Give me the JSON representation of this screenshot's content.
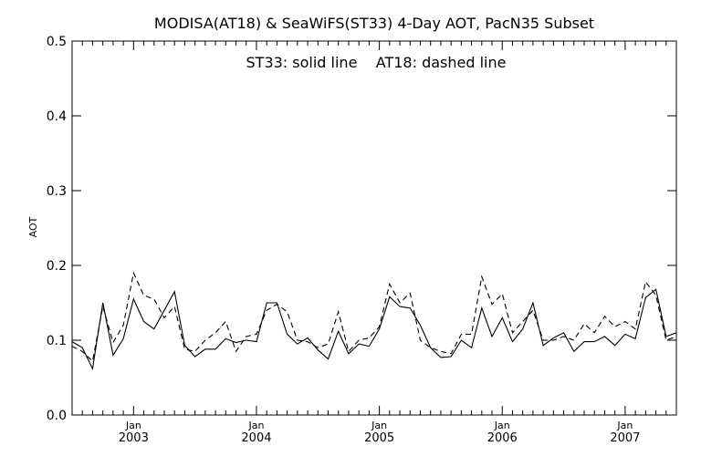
{
  "chart_data": {
    "type": "line",
    "title": "MODISA(AT18) & SeaWiFS(ST33) 4-Day AOT, PacN35 Subset",
    "annotation": "ST33: solid line    AT18: dashed line",
    "ylabel": "AOT",
    "xlabel": "",
    "ylim": [
      0.0,
      0.5
    ],
    "y_ticks": [
      "0.0",
      "0.1",
      "0.2",
      "0.3",
      "0.4",
      "0.5"
    ],
    "x_ticks": [
      {
        "month": "Jan",
        "year": "2003"
      },
      {
        "month": "Jan",
        "year": "2004"
      },
      {
        "month": "Jan",
        "year": "2005"
      },
      {
        "month": "Jan",
        "year": "2006"
      },
      {
        "month": "Jan",
        "year": "2007"
      }
    ],
    "xlim": [
      "2002-07",
      "2007-06"
    ],
    "grid": false,
    "legend": "none",
    "x": [
      "2002-07",
      "2002-08",
      "2002-09",
      "2002-10",
      "2002-11",
      "2002-12",
      "2003-01",
      "2003-02",
      "2003-03",
      "2003-04",
      "2003-05",
      "2003-06",
      "2003-07",
      "2003-08",
      "2003-09",
      "2003-10",
      "2003-11",
      "2003-12",
      "2004-01",
      "2004-02",
      "2004-03",
      "2004-04",
      "2004-05",
      "2004-06",
      "2004-07",
      "2004-08",
      "2004-09",
      "2004-10",
      "2004-11",
      "2004-12",
      "2005-01",
      "2005-02",
      "2005-03",
      "2005-04",
      "2005-05",
      "2005-06",
      "2005-07",
      "2005-08",
      "2005-09",
      "2005-10",
      "2005-11",
      "2005-12",
      "2006-01",
      "2006-02",
      "2006-03",
      "2006-04",
      "2006-05",
      "2006-06",
      "2006-07",
      "2006-08",
      "2006-09",
      "2006-10",
      "2006-11",
      "2006-12",
      "2007-01",
      "2007-02",
      "2007-03",
      "2007-04",
      "2007-05",
      "2007-06"
    ],
    "series": [
      {
        "name": "ST33",
        "style": "solid",
        "values": [
          0.098,
          0.09,
          0.062,
          0.15,
          0.08,
          0.102,
          0.155,
          0.125,
          0.115,
          0.14,
          0.165,
          0.093,
          0.078,
          0.088,
          0.088,
          0.102,
          0.097,
          0.1,
          0.098,
          0.15,
          0.15,
          0.108,
          0.095,
          0.103,
          0.087,
          0.075,
          0.112,
          0.082,
          0.095,
          0.092,
          0.115,
          0.158,
          0.145,
          0.143,
          0.12,
          0.09,
          0.077,
          0.078,
          0.1,
          0.09,
          0.143,
          0.105,
          0.13,
          0.098,
          0.115,
          0.15,
          0.093,
          0.103,
          0.11,
          0.085,
          0.098,
          0.098,
          0.105,
          0.093,
          0.108,
          0.102,
          0.157,
          0.168,
          0.105,
          0.11
        ]
      },
      {
        "name": "AT18",
        "style": "dashed",
        "values": [
          0.092,
          0.085,
          0.072,
          0.145,
          0.097,
          0.12,
          0.19,
          0.16,
          0.155,
          0.13,
          0.145,
          0.088,
          0.085,
          0.1,
          0.11,
          0.125,
          0.085,
          0.105,
          0.108,
          0.14,
          0.148,
          0.138,
          0.1,
          0.098,
          0.09,
          0.095,
          0.138,
          0.085,
          0.1,
          0.103,
          0.118,
          0.175,
          0.15,
          0.163,
          0.1,
          0.09,
          0.085,
          0.082,
          0.108,
          0.108,
          0.185,
          0.148,
          0.162,
          0.11,
          0.125,
          0.14,
          0.1,
          0.1,
          0.105,
          0.1,
          0.122,
          0.11,
          0.132,
          0.118,
          0.125,
          0.115,
          0.178,
          0.16,
          0.1,
          0.105
        ]
      }
    ]
  }
}
